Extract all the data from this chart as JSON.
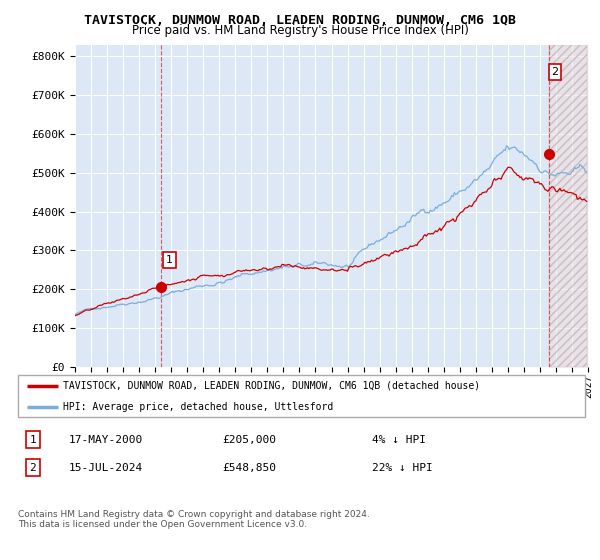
{
  "title": "TAVISTOCK, DUNMOW ROAD, LEADEN RODING, DUNMOW, CM6 1QB",
  "subtitle": "Price paid vs. HM Land Registry's House Price Index (HPI)",
  "ylim": [
    0,
    830000
  ],
  "yticks": [
    0,
    100000,
    200000,
    300000,
    400000,
    500000,
    600000,
    700000,
    800000
  ],
  "ytick_labels": [
    "£0",
    "£100K",
    "£200K",
    "£300K",
    "£400K",
    "£500K",
    "£600K",
    "£700K",
    "£800K"
  ],
  "x_start_year": 1995,
  "x_end_year": 2027,
  "xtick_years": [
    1995,
    1996,
    1997,
    1998,
    1999,
    2000,
    2001,
    2002,
    2003,
    2004,
    2005,
    2006,
    2007,
    2008,
    2009,
    2010,
    2011,
    2012,
    2013,
    2014,
    2015,
    2016,
    2017,
    2018,
    2019,
    2020,
    2021,
    2022,
    2023,
    2024,
    2025,
    2026,
    2027
  ],
  "background_color": "#dce8f5",
  "grid_color": "#ffffff",
  "hpi_color": "#7aaddd",
  "price_color": "#cc0000",
  "hatch_bg_color": "#ece0e0",
  "sale1_x": 2000.38,
  "sale1_y": 205000,
  "sale2_x": 2024.54,
  "sale2_y": 548850,
  "legend_line1": "TAVISTOCK, DUNMOW ROAD, LEADEN RODING, DUNMOW, CM6 1QB (detached house)",
  "legend_line2": "HPI: Average price, detached house, Uttlesford",
  "table_row1_num": "1",
  "table_row1_date": "17-MAY-2000",
  "table_row1_price": "£205,000",
  "table_row1_hpi": "4% ↓ HPI",
  "table_row2_num": "2",
  "table_row2_date": "15-JUL-2024",
  "table_row2_price": "£548,850",
  "table_row2_hpi": "22% ↓ HPI",
  "footer": "Contains HM Land Registry data © Crown copyright and database right 2024.\nThis data is licensed under the Open Government Licence v3.0."
}
